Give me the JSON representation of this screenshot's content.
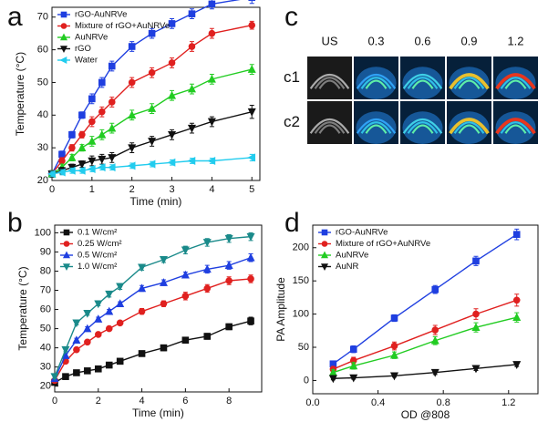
{
  "chart_data": [
    {
      "type": "line",
      "panel_label": "a",
      "xlabel": "Time (min)",
      "ylabel": "Temperature (°C)",
      "xlim": [
        0,
        5.2
      ],
      "ylim": [
        20,
        73
      ],
      "xticks": [
        0,
        1,
        2,
        3,
        4,
        5
      ],
      "yticks": [
        20,
        30,
        40,
        50,
        60,
        70
      ],
      "legend": "upper left",
      "x": [
        0,
        0.25,
        0.5,
        0.75,
        1,
        1.25,
        1.5,
        2,
        2.5,
        3,
        3.5,
        4,
        5
      ],
      "series": [
        {
          "name": "rGO-AuNRVe",
          "color": "#1f3fe0",
          "marker": "square",
          "values": [
            22,
            28,
            34,
            40,
            45,
            50,
            55,
            61,
            65,
            68,
            71,
            74,
            76
          ],
          "errors": [
            1,
            1,
            1,
            1,
            1.5,
            1.5,
            1.5,
            1.5,
            1.5,
            1.5,
            1.5,
            1.5,
            1.8
          ]
        },
        {
          "name": "Mixture of rGO+AuNRVe",
          "color": "#e0201f",
          "marker": "circle",
          "values": [
            22,
            26,
            30,
            34,
            38,
            41,
            44,
            50,
            53,
            56,
            61,
            65,
            67.5
          ],
          "errors": [
            1,
            1,
            1,
            1,
            1.5,
            1.5,
            1.5,
            1.5,
            1.5,
            1.5,
            1.5,
            1.5,
            1.2
          ]
        },
        {
          "name": "AuNRVe",
          "color": "#22cc22",
          "marker": "triangle-up",
          "values": [
            22,
            24,
            27,
            30,
            32,
            34,
            36,
            40,
            42,
            46,
            48,
            51,
            54
          ],
          "errors": [
            1,
            1,
            1,
            1,
            1.5,
            1.5,
            1.5,
            1.5,
            1.5,
            1.5,
            1.5,
            1.5,
            1.5
          ]
        },
        {
          "name": "rGO",
          "color": "#111111",
          "marker": "triangle-down",
          "values": [
            22,
            23,
            24,
            25,
            26,
            26.5,
            27,
            30,
            32,
            34,
            36,
            38,
            41
          ],
          "errors": [
            1,
            1,
            1,
            1,
            1.5,
            1.5,
            1.5,
            1.5,
            1.5,
            1.5,
            1.5,
            1.5,
            2
          ]
        },
        {
          "name": "Water",
          "color": "#22ccee",
          "marker": "triangle-left",
          "values": [
            22,
            22.5,
            23,
            23,
            23.5,
            24,
            24,
            24.5,
            25,
            25.5,
            26,
            26,
            27
          ],
          "errors": [
            0.8,
            0.8,
            0.8,
            0.8,
            0.8,
            0.8,
            0.8,
            0.8,
            0.8,
            0.8,
            0.8,
            0.8,
            1
          ]
        }
      ]
    },
    {
      "type": "line",
      "panel_label": "b",
      "xlabel": "Time (min)",
      "ylabel": "Temperature (°C)",
      "xlim": [
        0,
        9.5
      ],
      "ylim": [
        17,
        104
      ],
      "xticks": [
        0,
        2,
        4,
        6,
        8
      ],
      "yticks": [
        20,
        30,
        40,
        50,
        60,
        70,
        80,
        90,
        100
      ],
      "legend": "upper left",
      "x": [
        0,
        0.5,
        1,
        1.5,
        2,
        2.5,
        3,
        4,
        5,
        6,
        7,
        8,
        9
      ],
      "series": [
        {
          "name": "0.1 W/cm²",
          "color": "#111111",
          "marker": "square",
          "values": [
            22,
            25,
            27,
            28,
            29,
            31,
            33,
            37,
            40,
            44,
            46,
            51,
            54
          ],
          "errors": [
            1,
            1,
            1,
            1,
            1,
            1,
            1,
            1,
            1.5,
            1.5,
            1.5,
            1.5,
            2
          ]
        },
        {
          "name": "0.25 W/cm²",
          "color": "#e0201f",
          "marker": "circle",
          "values": [
            23,
            33,
            39,
            43,
            47,
            50,
            53,
            59,
            63,
            67,
            71,
            75,
            76
          ],
          "errors": [
            1,
            1,
            1,
            1,
            1,
            1,
            1,
            1.5,
            1.5,
            2,
            2,
            2,
            2
          ]
        },
        {
          "name": "0.5 W/cm²",
          "color": "#1f3fe0",
          "marker": "triangle-up",
          "values": [
            24,
            36,
            44,
            50,
            55,
            59,
            63,
            71,
            74,
            78,
            81,
            83,
            87
          ],
          "errors": [
            1,
            1,
            1,
            1,
            1,
            1,
            1,
            1.5,
            1.5,
            1.5,
            2,
            2,
            2
          ]
        },
        {
          "name": "1.0 W/cm²",
          "color": "#1a8a8a",
          "marker": "triangle-down",
          "values": [
            25,
            39,
            53,
            58,
            63,
            68,
            72,
            82,
            86,
            91,
            95,
            97,
            98
          ],
          "errors": [
            1,
            1,
            1,
            1,
            1,
            1.5,
            1.5,
            1.5,
            1.5,
            2,
            2,
            2,
            2
          ]
        }
      ]
    },
    {
      "type": "image_grid",
      "panel_label": "c",
      "column_labels": [
        "US",
        "0.3",
        "0.6",
        "0.9",
        "1.2"
      ],
      "row_labels": [
        "c1",
        "c2"
      ]
    },
    {
      "type": "line",
      "panel_label": "d",
      "xlabel": "OD @808",
      "ylabel": "PA Amplitude",
      "xlim": [
        0,
        1.38
      ],
      "ylim": [
        -20,
        234
      ],
      "xticks": [
        {
          "value": 0,
          "label": "0.0"
        },
        0.4,
        0.8,
        1.2
      ],
      "yticks": [
        0,
        50,
        100,
        150,
        200
      ],
      "legend": "upper left",
      "x": [
        0.125,
        0.25,
        0.5,
        0.75,
        1,
        1.25
      ],
      "series": [
        {
          "name": "rGO-AuNRVe",
          "color": "#1f3fe0",
          "marker": "square",
          "values": [
            25,
            47,
            94,
            137,
            180,
            220
          ],
          "errors": [
            4,
            5,
            5,
            6,
            7,
            8
          ]
        },
        {
          "name": "Mixture of rGO+AuNRVe",
          "color": "#e0201f",
          "marker": "circle",
          "values": [
            17,
            30,
            52,
            76,
            100,
            121
          ],
          "errors": [
            4,
            5,
            6,
            7,
            8,
            9
          ]
        },
        {
          "name": "AuNRVe",
          "color": "#22cc22",
          "marker": "triangle-up",
          "values": [
            12,
            22,
            38,
            60,
            80,
            95
          ],
          "errors": [
            4,
            5,
            5,
            6,
            7,
            7
          ]
        },
        {
          "name": "AuNR",
          "color": "#111111",
          "marker": "triangle-down",
          "values": [
            3,
            4,
            7,
            12,
            18,
            24
          ],
          "errors": [
            2,
            2,
            2,
            3,
            3,
            3
          ]
        }
      ]
    }
  ]
}
